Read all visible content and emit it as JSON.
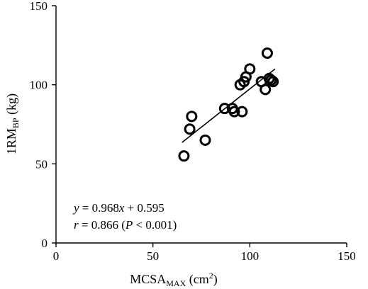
{
  "chart_data": {
    "type": "scatter",
    "title": "",
    "xlabel": {
      "main": "MCSA",
      "sub": "MAX",
      "unit_open": " (cm",
      "unit_sup": "2",
      "unit_close": ")"
    },
    "ylabel": {
      "main": "1RM",
      "sub": "BP",
      "unit": " (kg)"
    },
    "xlim": [
      0,
      150
    ],
    "ylim": [
      0,
      150
    ],
    "xticks": [
      0,
      50,
      100,
      150
    ],
    "yticks": [
      0,
      50,
      100,
      150
    ],
    "grid": false,
    "points": [
      {
        "x": 66,
        "y": 55
      },
      {
        "x": 69,
        "y": 72
      },
      {
        "x": 70,
        "y": 80
      },
      {
        "x": 77,
        "y": 65
      },
      {
        "x": 87,
        "y": 85
      },
      {
        "x": 91,
        "y": 85
      },
      {
        "x": 92,
        "y": 83
      },
      {
        "x": 96,
        "y": 83
      },
      {
        "x": 95,
        "y": 100
      },
      {
        "x": 97,
        "y": 102
      },
      {
        "x": 98,
        "y": 105
      },
      {
        "x": 100,
        "y": 110
      },
      {
        "x": 106,
        "y": 102
      },
      {
        "x": 108,
        "y": 97
      },
      {
        "x": 109,
        "y": 120
      },
      {
        "x": 110,
        "y": 104
      },
      {
        "x": 111,
        "y": 103
      },
      {
        "x": 112,
        "y": 102
      }
    ],
    "fit_line": {
      "slope": 0.968,
      "intercept": 0.595,
      "x_range": [
        65,
        113
      ]
    },
    "annotations": {
      "equation": {
        "y": "y",
        "eq1": " = 0.968",
        "x": "x",
        "eq2": " + 0.595"
      },
      "correlation": {
        "r": "r",
        "eq": " = 0.866 (",
        "p": "P",
        "rest": " < 0.001)"
      }
    }
  }
}
